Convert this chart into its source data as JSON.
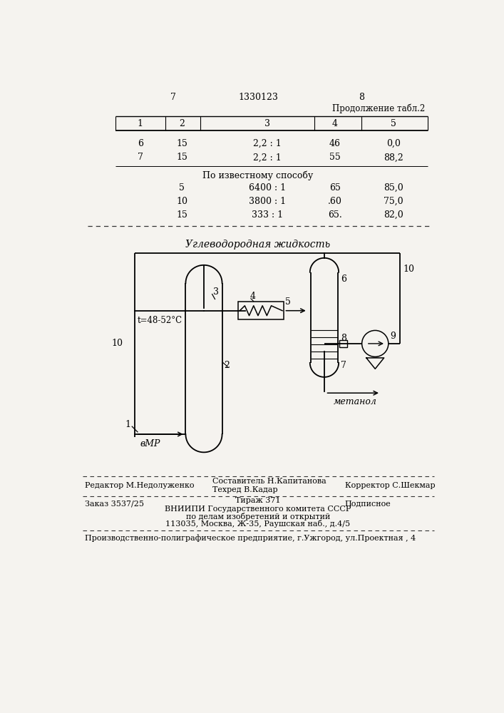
{
  "bg_color": "#f5f3ef",
  "page_number_left": "7",
  "page_number_center": "1330123",
  "page_number_right": "8",
  "continuation_text": "Продолжение табл.2",
  "table_headers": [
    "1",
    "2",
    "3",
    "4",
    "5"
  ],
  "table_rows": [
    [
      "6",
      "15",
      "2,2 : 1",
      "46",
      "0,0"
    ],
    [
      "7",
      "15",
      "2,2 : 1",
      "55",
      "88,2"
    ]
  ],
  "section_title": "По известному способу",
  "known_rows": [
    [
      "",
      "5",
      "6400 : 1",
      "65",
      "85,0"
    ],
    [
      "",
      "10",
      "3800 : 1",
      ".60",
      "75,0"
    ],
    [
      "",
      "15",
      "333 : 1",
      "65.",
      "82,0"
    ]
  ],
  "diagram_title": "Углеводородная жидкость",
  "label_t": "t=48-52°C",
  "label_vr": "вМР",
  "label_metanol": "метанол",
  "footer_editor": "Редактор М.Недолуженко",
  "footer_compiler1": "Составитель Н.Капитанова",
  "footer_tech": "Техред В.Кадар",
  "footer_corrector": "Корректор С.Шекмар",
  "footer_order": "Заказ 3537/25",
  "footer_tirazh": "Тираж 371",
  "footer_podpisnoe": "Подписное",
  "footer_vniip1": "ВНИИПИ Государственного комитета СССР",
  "footer_vniip2": "по делам изобретений и открытий",
  "footer_vniip3": "113035, Москва, Ж-35, Раушская наб., д.4/5",
  "footer_bottom": "Производственно-полиграфическое предприятие, г.Ужгород, ул.Проектная , 4"
}
